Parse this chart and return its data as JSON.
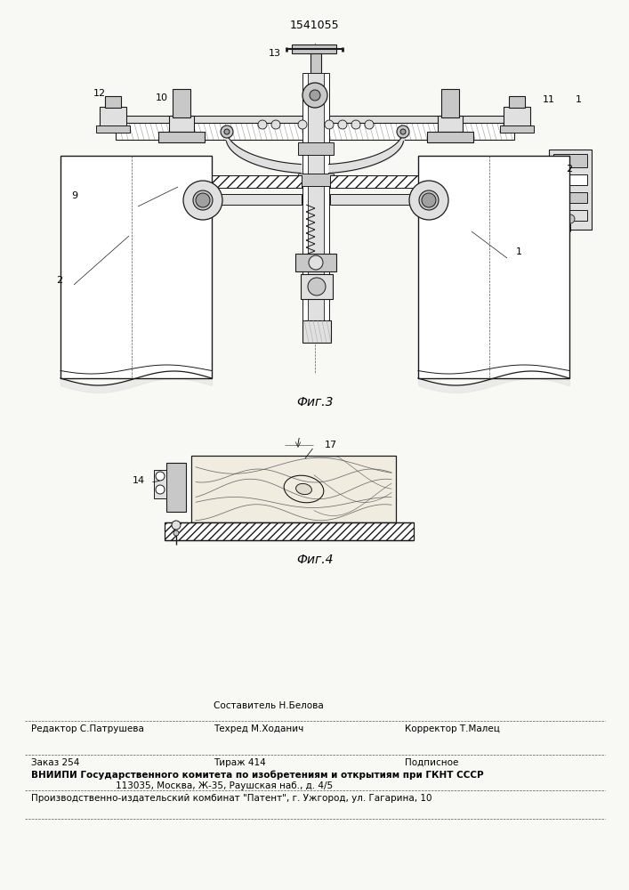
{
  "patent_number": "1541055",
  "bg": "#f8f8f5",
  "lc": "#1a1a1a",
  "fig3_caption": "Фиг.3",
  "fig4_caption": "Фиг.4",
  "editor_label": "Редактор С.Патрушева",
  "composer_label": "Составитель Н.Белова",
  "techred_label": "Техред М.Ходанич",
  "corrector_label": "Корректор Т.Малец",
  "order_label": "Заказ 254",
  "tirazh_label": "Тираж 414",
  "podpisnoe_label": "Подписное",
  "vniip1": "ВНИИПИ Государственного комитета по изобретениям и открытиям при ГКНТ СССР",
  "vniip2": "113035, Москва, Ж-35, Раушская наб., д. 4/5",
  "patent_kombnat": "Производственно-издательский комбинат \"Патент\", г. Ужгород, ул. Гагарина, 10"
}
